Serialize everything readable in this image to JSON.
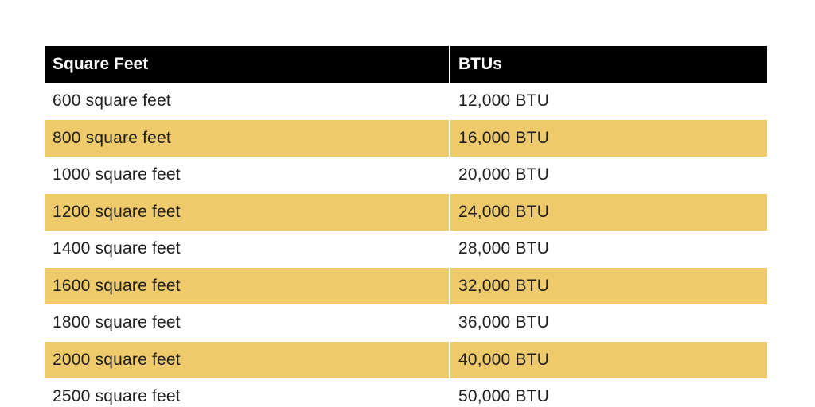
{
  "table": {
    "headers": [
      "Square Feet",
      "BTUs"
    ],
    "rows": [
      [
        "600 square feet",
        "12,000 BTU"
      ],
      [
        "800 square feet",
        "16,000 BTU"
      ],
      [
        "1000 square feet",
        "20,000 BTU"
      ],
      [
        "1200 square feet",
        "24,000 BTU"
      ],
      [
        "1400 square feet",
        "28,000 BTU"
      ],
      [
        "1600 square feet",
        "32,000 BTU"
      ],
      [
        "1800 square feet",
        "36,000 BTU"
      ],
      [
        "2000 square feet",
        "40,000 BTU"
      ],
      [
        "2500 square feet",
        "50,000 BTU"
      ]
    ],
    "colors": {
      "header_bg": "#000000",
      "header_text": "#ffffff",
      "stripe_bg": "#eeca6a",
      "body_text": "#1f1f1f"
    }
  }
}
